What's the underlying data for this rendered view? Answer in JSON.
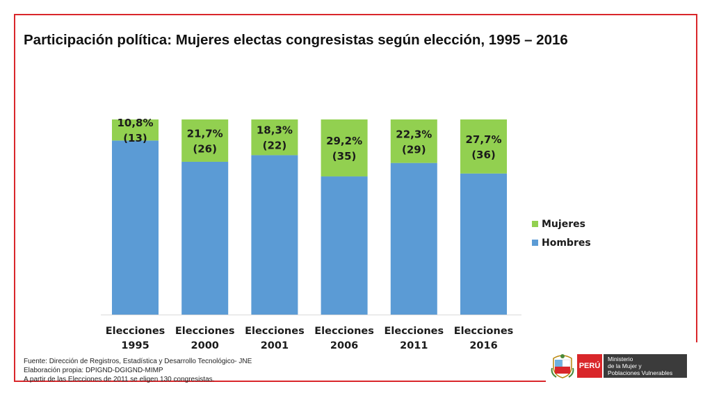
{
  "title": "Participación política: Mujeres electas congresistas según elección, 1995 – 2016",
  "chart_data": {
    "type": "bar",
    "stacked": true,
    "percent_stacked": true,
    "categories": [
      [
        "Elecciones",
        "1995"
      ],
      [
        "Elecciones",
        "2000"
      ],
      [
        "Elecciones",
        "2001"
      ],
      [
        "Elecciones",
        "2006"
      ],
      [
        "Elecciones",
        "2011"
      ],
      [
        "Elecciones",
        "2016"
      ]
    ],
    "series": [
      {
        "name": "Hombres",
        "color": "#5b9bd5",
        "values": [
          89.2,
          78.3,
          81.7,
          70.8,
          77.7,
          72.3
        ]
      },
      {
        "name": "Mujeres",
        "color": "#92d050",
        "values": [
          10.8,
          21.7,
          18.3,
          29.2,
          22.3,
          27.7
        ]
      }
    ],
    "data_labels": [
      [
        "10,8%",
        "(13)"
      ],
      [
        "21,7%",
        "(26)"
      ],
      [
        "18,3%",
        "(22)"
      ],
      [
        "29,2%",
        "(35)"
      ],
      [
        "22,3%",
        "(29)"
      ],
      [
        "27,7%",
        "(36)"
      ]
    ],
    "ylim": [
      0,
      100
    ],
    "legend": {
      "position": "right",
      "entries": [
        "Mujeres",
        "Hombres"
      ]
    },
    "grid": false
  },
  "footer": {
    "notes": [
      "Fuente: Dirección de Registros, Estadística y Desarrollo Tecnológico- JNE",
      "Elaboración propia: DPIGND-DGIGND-MIMP",
      "A partir de las Elecciones de 2011 se eligen 130 congresistas."
    ]
  },
  "logo": {
    "country": "PERÚ",
    "ministry_lines": [
      "Ministerio",
      "de la Mujer y",
      "Poblaciones Vulnerables"
    ],
    "accent": "#d9262a"
  }
}
